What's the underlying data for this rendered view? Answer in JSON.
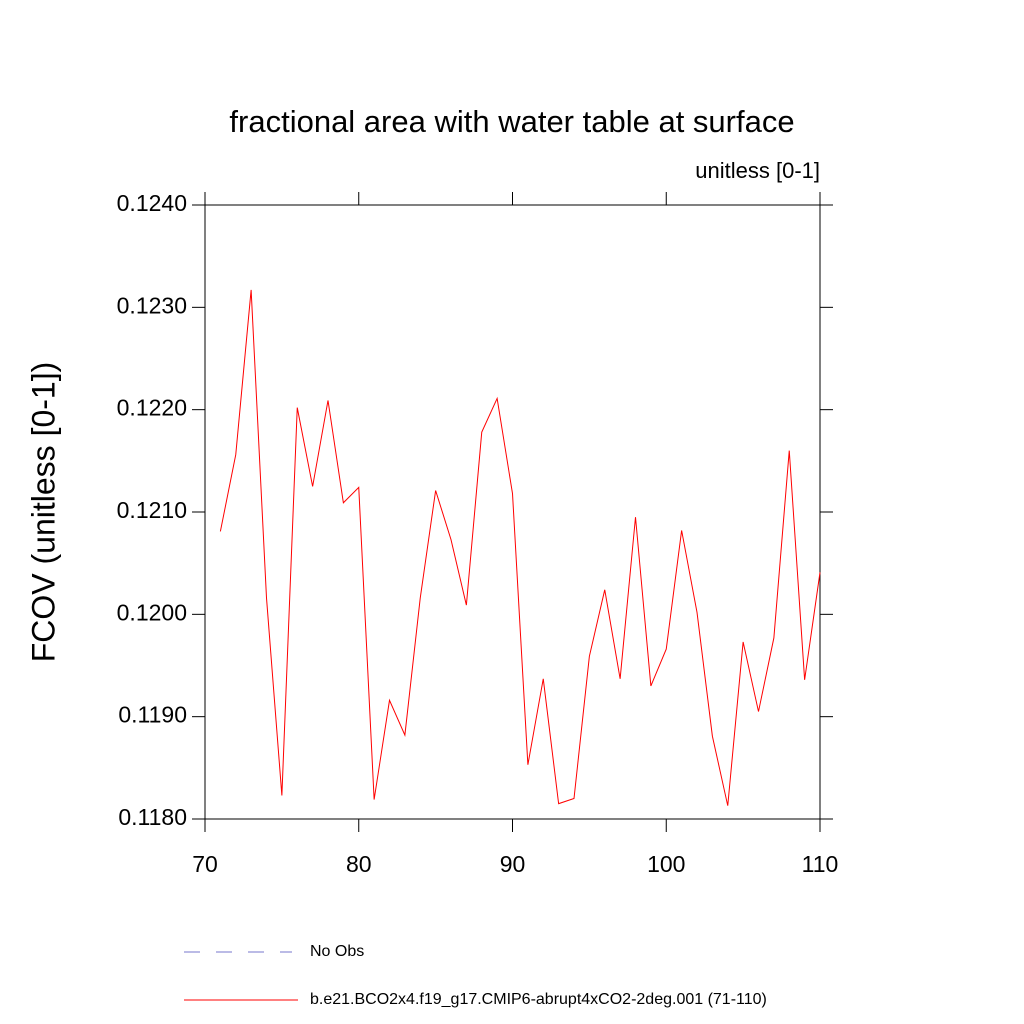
{
  "chart_data": {
    "type": "line",
    "title": "fractional area with water table at surface",
    "subtitle": "unitless [0-1]",
    "y_label": "FCOV  (unitless [0-1])",
    "x": [
      71,
      72,
      73,
      74,
      75,
      76,
      77,
      78,
      79,
      80,
      81,
      82,
      83,
      84,
      85,
      86,
      87,
      88,
      89,
      90,
      91,
      92,
      93,
      94,
      95,
      96,
      97,
      98,
      99,
      100,
      101,
      102,
      103,
      104,
      105,
      106,
      107,
      108,
      109,
      110
    ],
    "series": [
      {
        "name": "b.e21.BCO2x4.f19_g17.CMIP6-abrupt4xCO2-2deg.001 (71-110)",
        "color": "#ff0000",
        "values": [
          0.12081,
          0.12156,
          0.12317,
          0.12016,
          0.11823,
          0.12202,
          0.12125,
          0.12209,
          0.12109,
          0.12124,
          0.11819,
          0.11916,
          0.11882,
          0.12016,
          0.12121,
          0.12073,
          0.12009,
          0.12178,
          0.12211,
          0.12118,
          0.11853,
          0.11937,
          0.11815,
          0.1182,
          0.11959,
          0.12024,
          0.11937,
          0.12095,
          0.1193,
          0.11966,
          0.12082,
          0.12002,
          0.11881,
          0.11813,
          0.11973,
          0.11905,
          0.11977,
          0.1216,
          0.11936,
          0.12041
        ]
      }
    ],
    "legend_extra": [
      {
        "name": "No Obs",
        "color": "#7777cc",
        "style": "dashed"
      }
    ],
    "xlim": [
      70,
      110
    ],
    "xticks": [
      70,
      80,
      90,
      100,
      110
    ],
    "ylim": [
      0.118,
      0.124
    ],
    "yticks": [
      {
        "value": 0.118,
        "label": "0.1180"
      },
      {
        "value": 0.119,
        "label": "0.1190"
      },
      {
        "value": 0.12,
        "label": "0.1200"
      },
      {
        "value": 0.121,
        "label": "0.1210"
      },
      {
        "value": 0.122,
        "label": "0.1220"
      },
      {
        "value": 0.123,
        "label": "0.1230"
      },
      {
        "value": 0.124,
        "label": "0.1240"
      }
    ],
    "grid": false
  }
}
